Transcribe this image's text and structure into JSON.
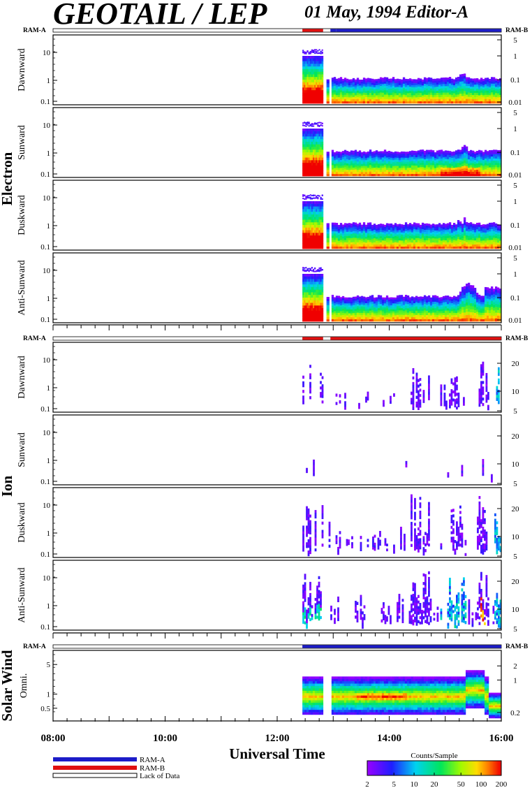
{
  "header": {
    "title": "GEOTAIL / LEP",
    "subtitle": "01 May, 1994   Editor-A"
  },
  "legend": {
    "ram_a": "RAM-A",
    "ram_b": "RAM-B",
    "lack": "Lack of Data",
    "ram_a_color": "#1c1cc8",
    "ram_b_color": "#e01010"
  },
  "colorbar": {
    "title": "Counts/Sample",
    "ticks": [
      "2",
      "5",
      "10",
      "20",
      "50",
      "100",
      "200"
    ]
  },
  "chart_data": {
    "type": "heatmap",
    "xlabel": "Universal Time",
    "x_range": [
      "08:00",
      "16:00"
    ],
    "x_ticks": [
      "08:00",
      "10:00",
      "12:00",
      "14:00",
      "16:00"
    ],
    "groups": [
      {
        "name": "Electron",
        "mode_left": "RAM-A",
        "mode_right": "RAM-B",
        "mode_bar": [
          {
            "start": 12.45,
            "end": 12.82,
            "mode": "B"
          },
          {
            "start": 12.95,
            "end": 13.05,
            "mode": "A"
          },
          {
            "start": 13.05,
            "end": 16.0,
            "mode": "A"
          }
        ],
        "left_ticks": [
          "10",
          "1",
          "0.1"
        ],
        "right_ticks": [
          "5",
          "1",
          "0.1",
          "0.01"
        ],
        "panels": [
          {
            "label": "Dawnward"
          },
          {
            "label": "Sunward"
          },
          {
            "label": "Duskward"
          },
          {
            "label": "Anti-Sunward"
          }
        ]
      },
      {
        "name": "Ion",
        "mode_left": "RAM-A",
        "mode_right": "RAM-B",
        "mode_bar": [
          {
            "start": 12.45,
            "end": 12.82,
            "mode": "B"
          },
          {
            "start": 12.95,
            "end": 16.0,
            "mode": "B"
          }
        ],
        "left_ticks": [
          "10",
          "1",
          "0.1"
        ],
        "right_ticks": [
          "20",
          "10",
          "5"
        ],
        "panels": [
          {
            "label": "Dawnward"
          },
          {
            "label": "Sunward"
          },
          {
            "label": "Duskward"
          },
          {
            "label": "Anti-Sunward"
          }
        ]
      },
      {
        "name": "Solar Wind",
        "mode_left": "RAM-A",
        "mode_right": "RAM-B",
        "mode_bar": [
          {
            "start": 12.45,
            "end": 16.0,
            "mode": "A"
          }
        ],
        "left_ticks": [
          "5",
          "1",
          "0.5"
        ],
        "right_ticks": [
          "2",
          "1",
          "0.2"
        ],
        "panels": [
          {
            "label": "Omni."
          }
        ]
      }
    ]
  }
}
